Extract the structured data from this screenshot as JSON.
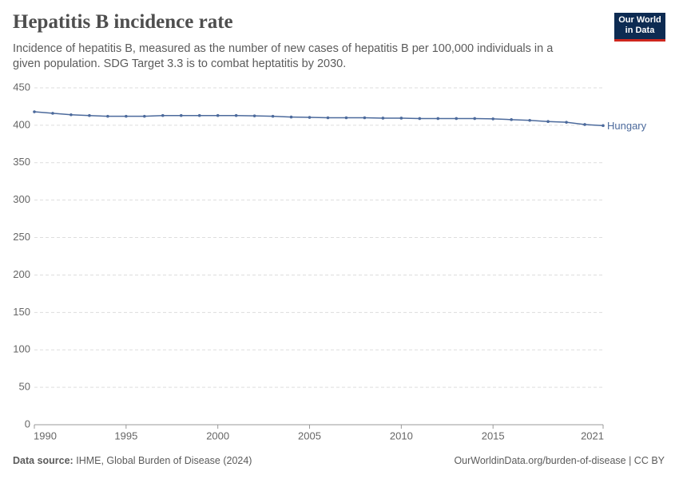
{
  "chart_data": {
    "type": "line",
    "title": "Hepatitis B incidence rate",
    "subtitle": "Incidence of hepatitis B, measured as the number of new cases of hepatitis B per 100,000 individuals in a given population. SDG Target 3.3 is to combat heptatitis by 2030.",
    "x": [
      1990,
      1991,
      1992,
      1993,
      1994,
      1995,
      1996,
      1997,
      1998,
      1999,
      2000,
      2001,
      2002,
      2003,
      2004,
      2005,
      2006,
      2007,
      2008,
      2009,
      2010,
      2011,
      2012,
      2013,
      2014,
      2015,
      2016,
      2017,
      2018,
      2019,
      2020,
      2021
    ],
    "series": [
      {
        "name": "Hungary",
        "color": "#4c6a9c",
        "values": [
          418,
          416,
          414,
          413,
          412,
          412,
          412,
          413,
          413,
          413,
          413,
          413,
          412.5,
          412,
          411,
          410.5,
          410,
          410,
          410,
          409.5,
          409.5,
          409,
          409,
          409,
          409,
          408.5,
          407.5,
          406.5,
          405,
          404,
          401,
          399.5
        ]
      }
    ],
    "xlim": [
      1990,
      2021
    ],
    "xticks": [
      1990,
      1995,
      2000,
      2005,
      2010,
      2015,
      2021
    ],
    "ylim": [
      0,
      450
    ],
    "yticks": [
      0,
      50,
      100,
      150,
      200,
      250,
      300,
      350,
      400,
      450
    ],
    "grid": true,
    "source_label": "Data source:",
    "source": "IHME, Global Burden of Disease (2024)",
    "credit": "OurWorldinData.org/burden-of-disease | CC BY"
  },
  "logo": [
    "Our World",
    "in Data"
  ]
}
